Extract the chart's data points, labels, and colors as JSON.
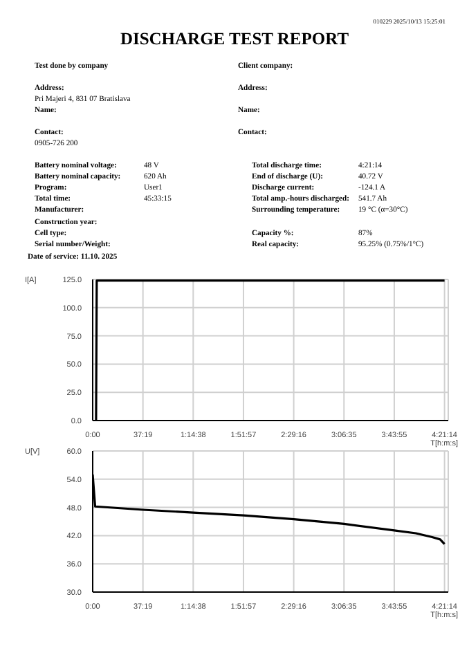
{
  "chart_data": [
    {
      "type": "other",
      "title": "DISCHARGE TEST REPORT",
      "annotations": [
        "010229 2025/10/13 15:25:01",
        "Test done by company",
        "Address:",
        "Pri Majeri 4, 831 07 Bratislava",
        "Name:",
        "Contact:",
        "0905-726 200",
        "Client company:",
        "Address:",
        "Name:",
        "Contact:",
        "Battery nominal voltage:",
        "48 V",
        "Battery nominal capacity:",
        "620 Ah",
        "Program:",
        "User1",
        "Total time:",
        "45:33:15",
        "Manufacturer:",
        "Construction year:",
        "Cell type:",
        "Serial number/Weight:",
        "Total discharge time:",
        "4:21:14",
        "End of discharge (U):",
        "40.72 V",
        "Discharge current:",
        "-124.1 A",
        "Total amp.-hours discharged:",
        "541.7 Ah",
        "Surrounding temperature:",
        "19 °C (α=30°C)",
        "Capacity %:",
        "87%",
        "Real capacity:",
        "95.25% (0.75%/1°C)",
        "Date of service: 11.10. 2025"
      ]
    },
    {
      "type": "line",
      "ylabel": "I[A]",
      "xlabel": "T[h:m:s]",
      "color": "#000000",
      "grid": true,
      "x": [
        150,
        180,
        15674
      ],
      "values": [
        0,
        124,
        124
      ],
      "xlim": [
        0,
        15840
      ],
      "xticks": [
        {
          "value": 0,
          "label": "0:00"
        },
        {
          "value": 2239,
          "label": "37:19"
        },
        {
          "value": 4478,
          "label": "1:14:38"
        },
        {
          "value": 6717,
          "label": "1:51:57"
        },
        {
          "value": 8956,
          "label": "2:29:16"
        },
        {
          "value": 11195,
          "label": "3:06:35"
        },
        {
          "value": 13435,
          "label": "3:43:55"
        },
        {
          "value": 15674,
          "label": "4:21:14"
        }
      ],
      "ylim": [
        0,
        125
      ],
      "yticks": [
        {
          "value": 0,
          "label": "0.0"
        },
        {
          "value": 25,
          "label": "25.0"
        },
        {
          "value": 50,
          "label": "50.0"
        },
        {
          "value": 75,
          "label": "75.0"
        },
        {
          "value": 100,
          "label": "100.0"
        },
        {
          "value": 125,
          "label": "125.0"
        }
      ]
    },
    {
      "type": "line",
      "ylabel": "U[V]",
      "xlabel": "T[h:m:s]",
      "color": "#000000",
      "grid": true,
      "x": [
        0,
        108,
        2239,
        4478,
        6717,
        8956,
        11196,
        13435,
        14400,
        15120,
        15480,
        15674
      ],
      "values": [
        55,
        48.2,
        47.5,
        46.9,
        46.3,
        45.5,
        44.5,
        43.1,
        42.5,
        41.7,
        41.2,
        40.2
      ],
      "xlim": [
        0,
        15840
      ],
      "xticks": [
        {
          "value": 0,
          "label": "0:00"
        },
        {
          "value": 2239,
          "label": "37:19"
        },
        {
          "value": 4478,
          "label": "1:14:38"
        },
        {
          "value": 6717,
          "label": "1:51:57"
        },
        {
          "value": 8956,
          "label": "2:29:16"
        },
        {
          "value": 11195,
          "label": "3:06:35"
        },
        {
          "value": 13435,
          "label": "3:43:55"
        },
        {
          "value": 15674,
          "label": "4:21:14"
        }
      ],
      "ylim": [
        30,
        60
      ],
      "yticks": [
        {
          "value": 30,
          "label": "30.0"
        },
        {
          "value": 36,
          "label": "36.0"
        },
        {
          "value": 42,
          "label": "42.0"
        },
        {
          "value": 48,
          "label": "48.0"
        },
        {
          "value": 54,
          "label": "54.0"
        },
        {
          "value": 60,
          "label": "60.0"
        }
      ]
    }
  ]
}
